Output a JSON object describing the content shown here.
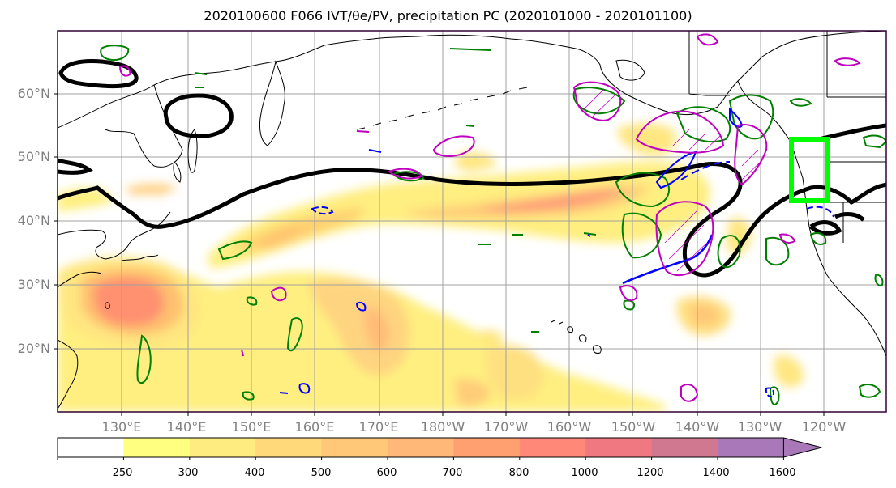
{
  "title": "2020100600 F066 IVT/θe/PV, precipitation PC (2020101000 - 2020101100)",
  "lat_labels": [
    "60°N",
    "50°N",
    "40°N",
    "30°N",
    "20°N"
  ],
  "lon_labels": [
    "130°E",
    "140°E",
    "150°E",
    "160°E",
    "170°E",
    "180°W",
    "170°W",
    "160°W",
    "150°W",
    "140°W",
    "130°W",
    "120°W"
  ],
  "colorbar": {
    "levels": [
      "250",
      "300",
      "400",
      "500",
      "600",
      "700",
      "800",
      "1000",
      "1200",
      "1400",
      "1600"
    ],
    "colors": [
      "#ffffff",
      "#ffff80",
      "#ffec80",
      "#ffd97a",
      "#ffc878",
      "#ffb878",
      "#ffa070",
      "#ff8878",
      "#f07880",
      "#d07890",
      "#a878b8"
    ]
  },
  "contour_colors": {
    "theta_e": "#000000",
    "pv_positive": "#008000",
    "pv_negative": "#0000ff",
    "precip_pc": "#c000c0",
    "target_box": "#00ff00"
  }
}
